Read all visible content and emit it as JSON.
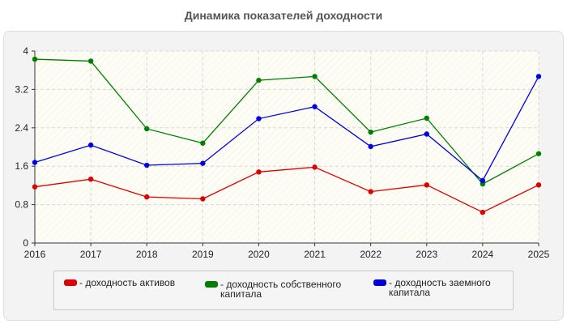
{
  "chart_data": {
    "type": "line",
    "title": "Динамика показателей доходности",
    "xlabel": "",
    "ylabel": "",
    "x": [
      "2016",
      "2017",
      "2018",
      "2019",
      "2020",
      "2021",
      "2022",
      "2023",
      "2024",
      "2025"
    ],
    "ylim": [
      0,
      4
    ],
    "yticks": [
      "0",
      "0.8",
      "1.6",
      "2.4",
      "3.2",
      "4"
    ],
    "grid": true,
    "legend_position": "bottom",
    "series": [
      {
        "name": "- доходность активов",
        "color": "#e00000",
        "values": [
          1.17,
          1.33,
          0.96,
          0.92,
          1.48,
          1.58,
          1.07,
          1.21,
          0.64,
          1.21
        ]
      },
      {
        "name": "- доходность собственного капитала",
        "color": "#008000",
        "values": [
          3.83,
          3.79,
          2.38,
          2.08,
          3.39,
          3.47,
          2.31,
          2.6,
          1.23,
          1.86
        ]
      },
      {
        "name": "- доходность заемного капитала",
        "color": "#0000e0",
        "values": [
          1.68,
          2.04,
          1.62,
          1.66,
          2.59,
          2.84,
          2.01,
          2.27,
          1.3,
          3.47
        ]
      }
    ]
  },
  "legend": {
    "items": [
      {
        "label": "- доходность активов",
        "color": "#e00000"
      },
      {
        "label": "- доходность собственного\nкапитала",
        "color": "#008000"
      },
      {
        "label": "- доходность заемного\nкапитала",
        "color": "#0000e0"
      }
    ]
  }
}
